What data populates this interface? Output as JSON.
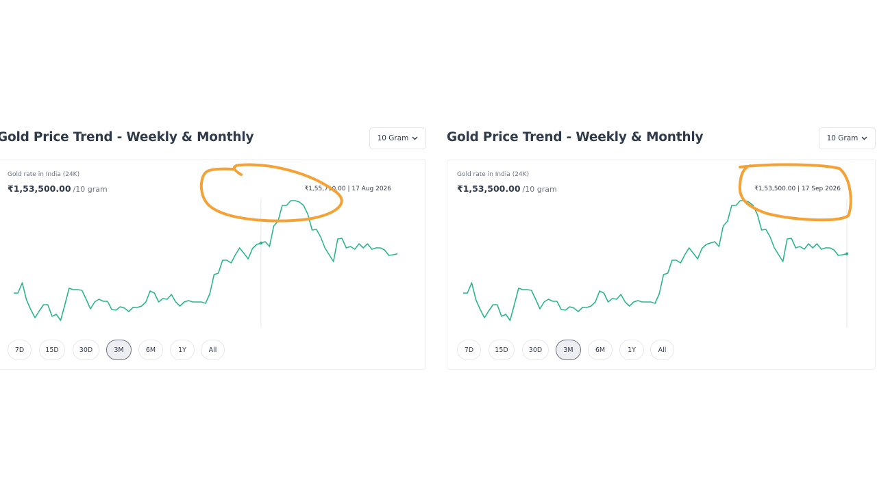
{
  "panels": [
    {
      "title": "Gold Price Trend - Weekly & Monthly",
      "unit_selector": "10 Gram",
      "card": {
        "label": "Gold rate in India (24K)",
        "price": "₹1,53,500.00",
        "price_unit": "/10 gram",
        "tooltip": "₹1,55,710.00 | 17 Aug 2026",
        "ranges": [
          "7D",
          "15D",
          "30D",
          "3M",
          "6M",
          "1Y",
          "All"
        ],
        "selected_range": "3M",
        "chart_data": {
          "type": "line",
          "color": "#2bb58e",
          "ylim": [
            138200,
            171800
          ],
          "values": [
            145480,
            145480,
            147580,
            144080,
            142120,
            140440,
            141840,
            143100,
            143100,
            140720,
            141140,
            139880,
            143100,
            146460,
            146180,
            146180,
            146040,
            144220,
            142260,
            143660,
            144220,
            143800,
            143800,
            142120,
            141980,
            142680,
            142400,
            141700,
            142540,
            142540,
            142820,
            143660,
            145900,
            145480,
            143660,
            144360,
            144220,
            145200,
            143660,
            142820,
            143660,
            143940,
            143660,
            143660,
            143660,
            143380,
            145340,
            149260,
            149540,
            152200,
            152200,
            151640,
            153320,
            154720,
            153600,
            152480,
            154580,
            155420,
            155710,
            155980,
            155000,
            159200,
            160180,
            163400,
            163400,
            164380,
            164380,
            164100,
            163400,
            161580,
            158360,
            158500,
            156960,
            154720,
            153320,
            151920,
            156540,
            156680,
            154720,
            155000,
            154440,
            155560,
            154720,
            155560,
            154440,
            154720,
            154720,
            154300,
            153180,
            153320,
            153500
          ]
        }
      }
    },
    {
      "title": "Gold Price Trend - Weekly & Monthly",
      "unit_selector": "10 Gram",
      "card": {
        "label": "Gold rate in India (24K)",
        "price": "₹1,53,500.00",
        "price_unit": "/10 gram",
        "tooltip": "₹1,53,500.00 | 17 Sep 2026",
        "ranges": [
          "7D",
          "15D",
          "30D",
          "3M",
          "6M",
          "1Y",
          "All"
        ],
        "selected_range": "3M",
        "chart_data": {
          "type": "line",
          "color": "#2bb58e",
          "ylim": [
            138200,
            171800
          ],
          "values": [
            145480,
            145480,
            147580,
            144080,
            142120,
            140440,
            141840,
            143100,
            143100,
            140720,
            141140,
            139880,
            143100,
            146460,
            146180,
            146180,
            146040,
            144220,
            142260,
            143660,
            144220,
            143800,
            143800,
            142120,
            141980,
            142680,
            142400,
            141700,
            142540,
            142540,
            142820,
            143660,
            145900,
            145480,
            143660,
            144360,
            144220,
            145200,
            143660,
            142820,
            143660,
            143940,
            143660,
            143660,
            143660,
            143380,
            145340,
            149260,
            149540,
            152200,
            152200,
            151640,
            153320,
            154720,
            153600,
            152480,
            154580,
            155420,
            155710,
            155980,
            155000,
            159200,
            160180,
            163400,
            163400,
            164380,
            164380,
            164100,
            163400,
            161580,
            158360,
            158500,
            156960,
            154720,
            153320,
            151920,
            156540,
            156680,
            154720,
            155000,
            154440,
            155560,
            154720,
            155560,
            154440,
            154720,
            154720,
            154300,
            153180,
            153320,
            153500
          ]
        }
      }
    }
  ]
}
